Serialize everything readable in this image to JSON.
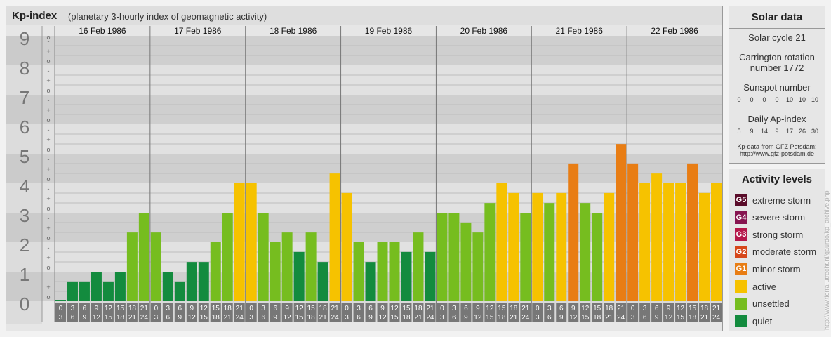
{
  "header": {
    "title": "Kp-index",
    "subtitle": "(planetary 3-hourly index of geomagnetic activity)"
  },
  "chart_data": {
    "type": "bar",
    "title": "Kp-index",
    "subtitle": "(planetary 3-hourly index of geomagnetic activity)",
    "ylim": [
      0,
      9
    ],
    "y_ticks": [
      "0",
      "1",
      "2",
      "3",
      "4",
      "5",
      "6",
      "7",
      "8",
      "9"
    ],
    "minor_marks": [
      "o",
      "+",
      "-"
    ],
    "days": [
      "16 Feb 1986",
      "17 Feb 1986",
      "18 Feb 1986",
      "19 Feb 1986",
      "20 Feb 1986",
      "21 Feb 1986",
      "22 Feb 1986"
    ],
    "interval_top": [
      "0",
      "3",
      "6",
      "9",
      "12",
      "15",
      "18",
      "21"
    ],
    "interval_bottom": [
      "3",
      "6",
      "9",
      "12",
      "15",
      "18",
      "21",
      "24"
    ],
    "values": [
      [
        0,
        0.67,
        0.67,
        1,
        0.67,
        1,
        2.33,
        3
      ],
      [
        2.33,
        1,
        0.67,
        1.33,
        1.33,
        2,
        3,
        4
      ],
      [
        4,
        3,
        2,
        2.33,
        1.67,
        2.33,
        1.33,
        4.33
      ],
      [
        3.67,
        2,
        1.33,
        2,
        2,
        1.67,
        2.33,
        1.67
      ],
      [
        3,
        3,
        2.67,
        2.33,
        3.33,
        4,
        3.67,
        3
      ],
      [
        3.67,
        3.33,
        3.67,
        4.67,
        3.33,
        3,
        3.67,
        5.33
      ],
      [
        4.67,
        4,
        4.33,
        4,
        4,
        4.67,
        3.67,
        4
      ]
    ],
    "grid": true
  },
  "colors": {
    "quiet": "#138b3e",
    "unsettled": "#76bd1f",
    "active": "#f6c200",
    "g1": "#e87d14",
    "g2": "#d6461a",
    "g3": "#b5174b",
    "g4": "#861450",
    "g5": "#5a0c2a",
    "tick_bg": "#777777",
    "band_dark": "#cfcfcf",
    "band_light": "#e1e1e1"
  },
  "solar": {
    "title": "Solar data",
    "cycle": "Solar cycle 21",
    "carrington_line1": "Carrington rotation",
    "carrington_line2": "number 1772",
    "sunspot_label": "Sunspot number",
    "sunspot_values": [
      "0",
      "0",
      "0",
      "0",
      "10",
      "10",
      "10"
    ],
    "ap_label": "Daily Ap-index",
    "ap_values": [
      "5",
      "9",
      "14",
      "9",
      "17",
      "26",
      "30"
    ],
    "source_line1": "Kp-data from GFZ Potsdam:",
    "source_line2": "http://www.gfz-potsdam.de"
  },
  "legend": {
    "title": "Activity levels",
    "items": [
      {
        "badge": "G5",
        "label": "extreme storm",
        "color": "#5a0c2a"
      },
      {
        "badge": "G4",
        "label": "severe storm",
        "color": "#861450"
      },
      {
        "badge": "G3",
        "label": "strong storm",
        "color": "#b5174b"
      },
      {
        "badge": "G2",
        "label": "moderate storm",
        "color": "#d6461a"
      },
      {
        "badge": "G1",
        "label": "minor storm",
        "color": "#e87d14"
      },
      {
        "badge": "",
        "label": "active",
        "color": "#f6c200"
      },
      {
        "badge": "",
        "label": "unsettled",
        "color": "#76bd1f"
      },
      {
        "badge": "",
        "label": "quiet",
        "color": "#138b3e"
      }
    ]
  },
  "watermark": "http://www.tierra-utrecht.nl/gaurdo/kp_archive.php"
}
